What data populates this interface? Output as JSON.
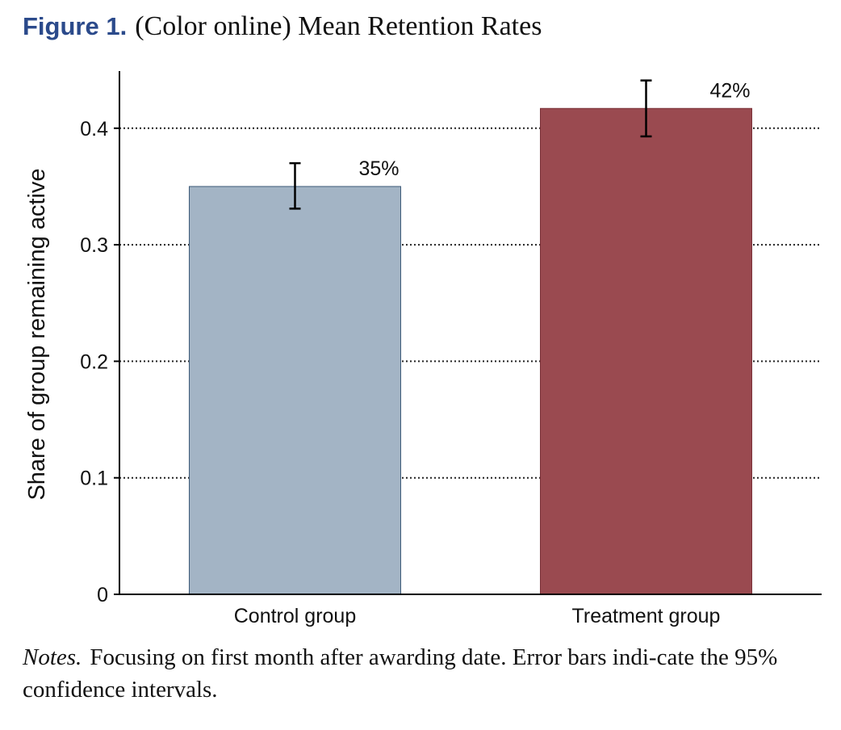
{
  "figure": {
    "label": "Figure 1.",
    "title": "(Color online) Mean Retention Rates"
  },
  "chart_data": {
    "type": "bar",
    "categories": [
      "Control group",
      "Treatment group"
    ],
    "values": [
      0.35,
      0.417
    ],
    "error_low": [
      0.331,
      0.393
    ],
    "error_high": [
      0.37,
      0.441
    ],
    "data_labels": [
      "35%",
      "42%"
    ],
    "colors": [
      "#a3b4c5",
      "#9a4a50"
    ],
    "ylabel": "Share of group remaining active",
    "xlabel": "",
    "ylim": [
      0,
      0.45
    ],
    "yticks": [
      0,
      0.1,
      0.2,
      0.3,
      0.4
    ],
    "ytick_labels": [
      "0",
      "0.1",
      "0.2",
      "0.3",
      "0.4"
    ],
    "grid": "dotted horizontal"
  },
  "notes": {
    "label": "Notes.",
    "text": "Focusing on first month after awarding date. Error bars indi-cate the 95% confidence intervals."
  }
}
